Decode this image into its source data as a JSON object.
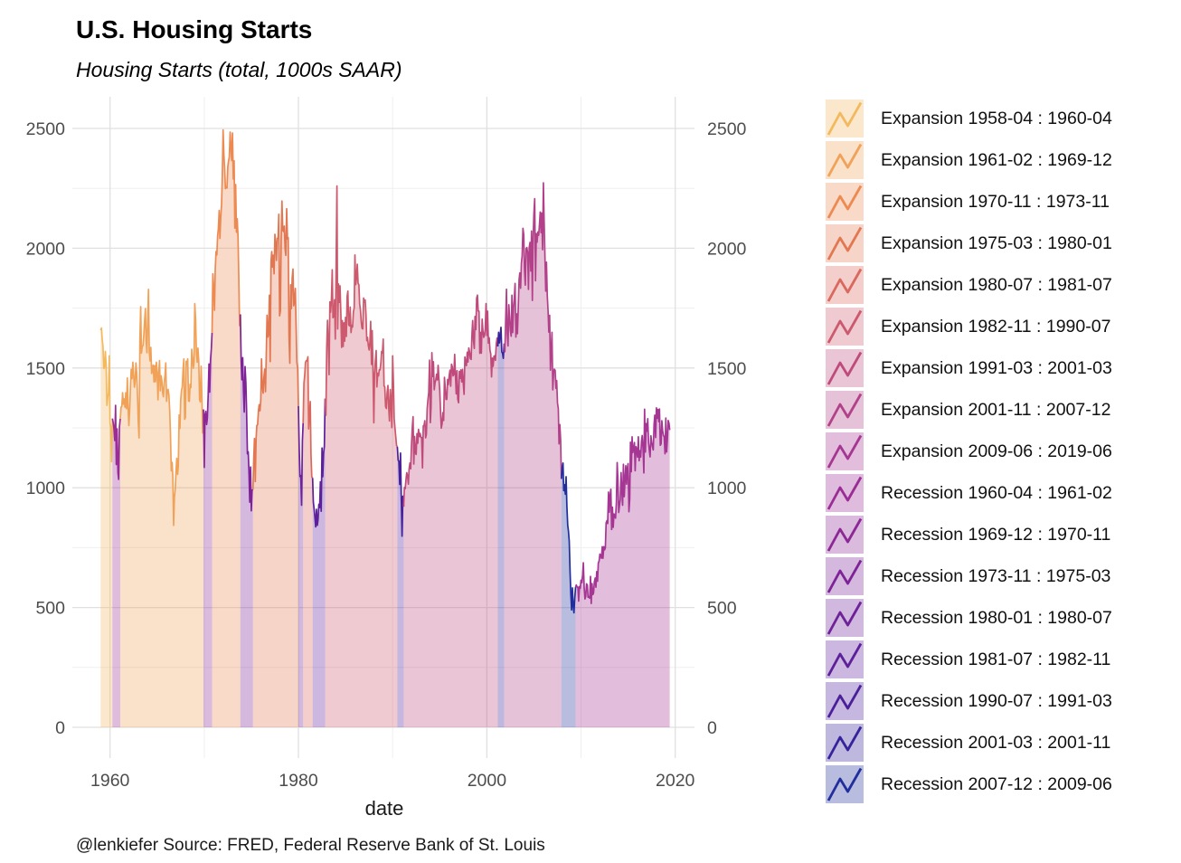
{
  "header": {
    "title": "U.S. Housing Starts",
    "subtitle": "Housing Starts (total, 1000s SAAR)"
  },
  "caption": "@lenkiefer Source: FRED, Federal Reserve Bank of St. Louis",
  "chart_data": {
    "type": "area",
    "title": "U.S. Housing Starts",
    "subtitle": "Housing Starts (total, 1000s SAAR)",
    "xlabel": "date",
    "ylabel": "",
    "legend_position": "right",
    "axes": {
      "x_ticks": [
        1960,
        1980,
        2000,
        2020
      ],
      "x_minor": [
        1970,
        1990,
        2010
      ],
      "y_ticks": [
        0,
        500,
        1000,
        1500,
        2000,
        2500
      ],
      "y_minor": [
        250,
        750,
        1250,
        1750,
        2250
      ],
      "ylim": [
        0,
        2500
      ],
      "xlim": [
        1959,
        2019.5
      ],
      "right_axis_duplicate": true,
      "grid": "major+minor"
    },
    "style": {
      "background": "#ffffff",
      "grid_major": "#e0e0e0",
      "grid_minor": "#efefef",
      "tick_color": "#4d4d4d",
      "fill_opacity": 0.32,
      "line_width": 1.7
    },
    "series": [
      {
        "id": "expansion-1",
        "name": "Expansion 1958-04 : 1960-04",
        "type": "expansion",
        "color": "#F3B95F",
        "start": 1959.0,
        "values": [
          1657,
          1667,
          1620,
          1590,
          1498,
          1503,
          1569,
          1510,
          1344,
          1377,
          1395,
          1551,
          1271,
          1251,
          1109,
          1289
        ]
      },
      {
        "id": "recession-1",
        "name": "Recession 1960-04 : 1961-02",
        "type": "recession",
        "color": "#9A2D95",
        "start": 1960.25,
        "values": [
          1289,
          1271,
          1247,
          1197,
          1344,
          1097,
          1246,
          1063,
          1035,
          1254,
          1288
        ]
      },
      {
        "id": "expansion-2",
        "name": "Expansion 1961-02 : 1969-12",
        "type": "expansion",
        "color": "#F1A259",
        "start": 1961.0833,
        "values": [
          1288,
          1337,
          1340,
          1397,
          1349,
          1371,
          1336,
          1397,
          1330,
          1458,
          1333,
          1260,
          1326,
          1425,
          1494,
          1456,
          1524,
          1479,
          1420,
          1445,
          1521,
          1480,
          1383,
          1275,
          1208,
          1620,
          1756,
          1562,
          1590,
          1594,
          1636,
          1696,
          1748,
          1615,
          1564,
          1712,
          1828,
          1566,
          1530,
          1586,
          1477,
          1494,
          1512,
          1442,
          1510,
          1443,
          1524,
          1485,
          1367,
          1475,
          1531,
          1405,
          1468,
          1447,
          1396,
          1380,
          1437,
          1472,
          1521,
          1361,
          1406,
          1411,
          1387,
          1319,
          1226,
          1071,
          1106,
          1049,
          843,
          961,
          990,
          1067,
          1123,
          1056,
          1091,
          1304,
          1248,
          1364,
          1407,
          1421,
          1491,
          1538,
          1286,
          1293,
          1528,
          1516,
          1538,
          1362,
          1361,
          1432,
          1418,
          1578,
          1545,
          1499,
          1524,
          1769,
          1705,
          1561,
          1524,
          1583,
          1528,
          1368,
          1358,
          1507,
          1381,
          1229,
          1327
        ]
      },
      {
        "id": "recession-2",
        "name": "Recession 1969-12 : 1970-11",
        "type": "recession",
        "color": "#8C2795",
        "start": 1969.9167,
        "values": [
          1327,
          1085,
          1305,
          1319,
          1264,
          1290,
          1385,
          1517,
          1399,
          1534,
          1580,
          1647
        ]
      },
      {
        "id": "expansion-3",
        "name": "Expansion 1970-11 : 1973-11",
        "type": "expansion",
        "color": "#EC8A51",
        "start": 1970.8333,
        "values": [
          1647,
          1893,
          1828,
          1741,
          1910,
          1986,
          1972,
          2049,
          2083,
          2158,
          2041,
          2128,
          2182,
          2295,
          2494,
          2390,
          2334,
          2249,
          2254,
          2252,
          2340,
          2366,
          2381,
          2485,
          2421,
          2366,
          2481,
          2289,
          2365,
          2084,
          2266,
          2067,
          2123,
          2051,
          1874,
          1677,
          1724
        ]
      },
      {
        "id": "recession-3",
        "name": "Recession 1973-11 : 1975-03",
        "type": "recession",
        "color": "#7D2397",
        "start": 1973.8333,
        "values": [
          1724,
          1526,
          1451,
          1543,
          1399,
          1316,
          1506,
          1439,
          1316,
          1142,
          1150,
          1070,
          940,
          1087,
          904,
          990,
          993
        ]
      },
      {
        "id": "expansion-4",
        "name": "Expansion 1975-03 : 1980-01",
        "type": "expansion",
        "color": "#E27852",
        "start": 1975.1667,
        "values": [
          993,
          1121,
          1206,
          1026,
          1206,
          1260,
          1264,
          1321,
          1347,
          1321,
          1367,
          1538,
          1421,
          1395,
          1459,
          1495,
          1401,
          1550,
          1720,
          1629,
          1641,
          1804,
          1527,
          1943,
          1986,
          1921,
          1971,
          1893,
          2058,
          2020,
          1949,
          2042,
          2042,
          2142,
          1718,
          1738,
          2032,
          2197,
          2075,
          2070,
          2092,
          1996,
          1970,
          2165,
          2039,
          2044,
          1630,
          1520,
          1847,
          1748,
          1876,
          1913,
          1760,
          1778,
          1832,
          1681,
          1524,
          1498,
          1341
        ]
      },
      {
        "id": "recession-4",
        "name": "Recession 1980-01 : 1980-07",
        "type": "recession",
        "color": "#6E2199",
        "start": 1980.0,
        "values": [
          1341,
          1163,
          1047,
          1051,
          927,
          1196,
          1269
        ]
      },
      {
        "id": "expansion-5",
        "name": "Expansion 1980-07 : 1981-07",
        "type": "expansion",
        "color": "#D9685E",
        "start": 1980.5,
        "values": [
          1269,
          1436,
          1471,
          1523,
          1531,
          1529,
          1547,
          1246,
          1306,
          1360,
          1140,
          1045,
          1041
        ]
      },
      {
        "id": "recession-5",
        "name": "Recession 1981-07 : 1982-11",
        "type": "recession",
        "color": "#5D209A",
        "start": 1981.5,
        "values": [
          1041,
          940,
          911,
          873,
          837,
          910,
          843,
          866,
          931,
          917,
          1025,
          902,
          1166,
          1046,
          1144,
          1173,
          1372
        ]
      },
      {
        "id": "expansion-6",
        "name": "Expansion 1982-11 : 1990-07",
        "type": "expansion",
        "color": "#CC596E",
        "start": 1982.8333,
        "values": [
          1372,
          1303,
          1586,
          1699,
          1606,
          1472,
          1776,
          1733,
          1785,
          1910,
          1710,
          1715,
          1785,
          1621,
          1923,
          2260,
          1663,
          1851,
          1774,
          1843,
          1732,
          1586,
          1698,
          1590,
          1689,
          1612,
          1711,
          1632,
          1800,
          1821,
          1680,
          1676,
          1754,
          1648,
          1678,
          1671,
          1734,
          1752,
          1972,
          1848,
          1876,
          1933,
          1854,
          1847,
          1768,
          1742,
          1692,
          1666,
          1663,
          1792,
          1774,
          1784,
          1726,
          1614,
          1628,
          1594,
          1575,
          1605,
          1695,
          1515,
          1656,
          1486,
          1271,
          1473,
          1532,
          1573,
          1421,
          1478,
          1467,
          1493,
          1492,
          1522,
          1569,
          1563,
          1621,
          1425,
          1422,
          1339,
          1331,
          1397,
          1427,
          1332,
          1279,
          1410,
          1351,
          1251,
          1551,
          1437,
          1289,
          1248,
          1212,
          1177,
          1171
        ]
      },
      {
        "id": "recession-6",
        "name": "Recession 1990-07 : 1991-03",
        "type": "recession",
        "color": "#4A1F9A",
        "start": 1990.5,
        "values": [
          1171,
          1115,
          1110,
          1014,
          1145,
          969,
          798,
          965,
          921
        ]
      },
      {
        "id": "expansion-7",
        "name": "Expansion 1991-03 : 2001-03",
        "type": "expansion",
        "color": "#BF4B7D",
        "start": 1991.1667,
        "values": [
          921,
          1001,
          996,
          1036,
          1063,
          1049,
          1015,
          1079,
          1103,
          1079,
          1176,
          1250,
          1297,
          1099,
          1214,
          1145,
          1139,
          1226,
          1186,
          1244,
          1214,
          1227,
          1210,
          1210,
          1083,
          1258,
          1260,
          1280,
          1209,
          1223,
          1331,
          1370,
          1397,
          1533,
          1272,
          1337,
          1564,
          1465,
          1526,
          1409,
          1439,
          1450,
          1474,
          1450,
          1511,
          1455,
          1407,
          1316,
          1249,
          1267,
          1314,
          1281,
          1461,
          1416,
          1369,
          1369,
          1452,
          1431,
          1467,
          1491,
          1424,
          1516,
          1504,
          1467,
          1472,
          1557,
          1475,
          1392,
          1489,
          1370,
          1355,
          1486,
          1457,
          1492,
          1442,
          1494,
          1437,
          1390,
          1546,
          1520,
          1510,
          1566,
          1525,
          1584,
          1567,
          1540,
          1536,
          1641,
          1698,
          1614,
          1582,
          1715,
          1660,
          1792,
          1804,
          1738,
          1737,
          1561,
          1649,
          1562,
          1704,
          1657,
          1628,
          1636,
          1663,
          1769,
          1636,
          1737,
          1604,
          1626,
          1575,
          1559,
          1463,
          1541,
          1507,
          1549,
          1551,
          1532,
          1600,
          1625,
          1590
        ]
      },
      {
        "id": "recession-7",
        "name": "Recession 2001-03 : 2001-11",
        "type": "recession",
        "color": "#36239B",
        "start": 2001.1667,
        "values": [
          1590,
          1649,
          1605,
          1636,
          1670,
          1567,
          1562,
          1540,
          1602
        ]
      },
      {
        "id": "expansion-8",
        "name": "Expansion 2001-11 : 2007-12",
        "type": "expansion",
        "color": "#B2418A",
        "start": 2001.8333,
        "values": [
          1602,
          1568,
          1698,
          1829,
          1642,
          1592,
          1764,
          1717,
          1655,
          1633,
          1804,
          1648,
          1753,
          1788,
          1853,
          1629,
          1726,
          1643,
          1751,
          1867,
          1897,
          1833,
          1939,
          1967,
          2083,
          2057,
          1911,
          1846,
          1998,
          2003,
          1981,
          1828,
          2002,
          2024,
          1905,
          2072,
          1782,
          2042,
          2144,
          2207,
          1864,
          2061,
          2025,
          2068,
          2054,
          2095,
          2151,
          2065,
          2147,
          1994,
          2273,
          2119,
          1969,
          1821,
          1942,
          1802,
          1737,
          1650,
          1720,
          1491,
          1570,
          1649,
          1409,
          1480,
          1495,
          1490,
          1415,
          1448,
          1354,
          1330,
          1183,
          1264,
          1197,
          1037
        ]
      },
      {
        "id": "recession-8",
        "name": "Recession 2007-12 : 2009-06",
        "type": "recession",
        "color": "#212E9C",
        "start": 2007.9167,
        "values": [
          1037,
          1084,
          1103,
          988,
          1013,
          973,
          1046,
          923,
          844,
          820,
          777,
          652,
          560,
          490,
          582,
          505,
          478,
          540,
          585
        ]
      },
      {
        "id": "expansion-9",
        "name": "Expansion 2009-06 : 2019-06",
        "type": "expansion",
        "color": "#A53693",
        "start": 2009.4167,
        "values": [
          585,
          594,
          586,
          585,
          527,
          588,
          581,
          614,
          604,
          636,
          687,
          583,
          536,
          546,
          599,
          594,
          543,
          545,
          539,
          630,
          517,
          600,
          554,
          561,
          608,
          623,
          585,
          650,
          610,
          685,
          694,
          723,
          718,
          706,
          754,
          706,
          754,
          741,
          749,
          854,
          863,
          851,
          982,
          898,
          969,
          994,
          826,
          919,
          835,
          891,
          883,
          873,
          936,
          1105,
          1034,
          897,
          928,
          950,
          1063,
          984,
          927,
          1098,
          963,
          1028,
          1092,
          1015,
          1081,
          1101,
          900,
          954,
          1190,
          1067,
          1213,
          1147,
          1164,
          1189,
          1071,
          1171,
          1160,
          1128,
          1213,
          1113,
          1155,
          1128,
          1195,
          1218,
          1164,
          1062,
          1328,
          1149,
          1268,
          1236,
          1288,
          1189,
          1154,
          1129,
          1217,
          1190,
          1172,
          1158,
          1265,
          1303,
          1210,
          1334,
          1290,
          1327,
          1276,
          1329,
          1177,
          1184,
          1280,
          1237,
          1217,
          1214,
          1142,
          1291,
          1149,
          1199,
          1281,
          1270,
          1241
        ]
      }
    ]
  }
}
